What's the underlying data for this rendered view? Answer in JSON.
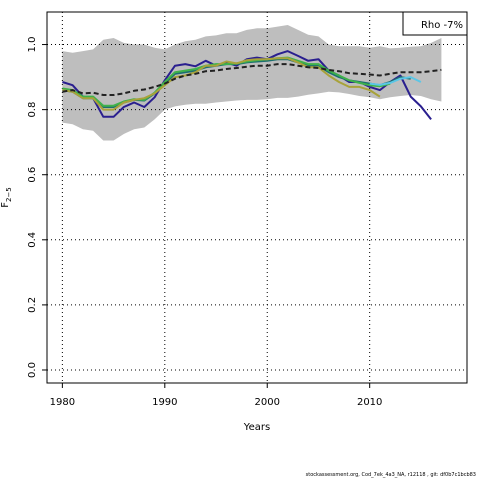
{
  "chart_data": {
    "type": "line",
    "xlabel": "Years",
    "ylabel": "F",
    "ylabel_sub": "2−5",
    "xlim": [
      1978.5,
      2019.5
    ],
    "ylim": [
      -0.04,
      1.1
    ],
    "x_ticks": [
      1980,
      1990,
      2000,
      2010
    ],
    "y_ticks": [
      0.0,
      0.2,
      0.4,
      0.6,
      0.8,
      1.0
    ],
    "x_tick_labels": [
      "1980",
      "1990",
      "2000",
      "2010"
    ],
    "y_tick_labels": [
      "0.0",
      "0.2",
      "0.4",
      "0.6",
      "0.8",
      "1.0"
    ],
    "grid": true,
    "legend": {
      "placement": "top-right",
      "text": "Rho -7%"
    },
    "band": {
      "color": "#bebebe",
      "x": [
        1980,
        1981,
        1982,
        1983,
        1984,
        1985,
        1986,
        1987,
        1988,
        1989,
        1990,
        1991,
        1992,
        1993,
        1994,
        1995,
        1996,
        1997,
        1998,
        1999,
        2000,
        2001,
        2002,
        2003,
        2004,
        2005,
        2006,
        2007,
        2008,
        2009,
        2010,
        2011,
        2012,
        2013,
        2014,
        2015,
        2016,
        2017
      ],
      "lower": [
        0.76,
        0.755,
        0.74,
        0.735,
        0.705,
        0.705,
        0.725,
        0.74,
        0.745,
        0.77,
        0.8,
        0.81,
        0.815,
        0.818,
        0.818,
        0.822,
        0.825,
        0.828,
        0.83,
        0.83,
        0.832,
        0.836,
        0.836,
        0.84,
        0.846,
        0.85,
        0.855,
        0.853,
        0.848,
        0.842,
        0.838,
        0.832,
        0.838,
        0.842,
        0.845,
        0.842,
        0.832,
        0.825
      ],
      "upper": [
        0.98,
        0.975,
        0.98,
        0.985,
        1.015,
        1.02,
        1.005,
        1.0,
        1.0,
        0.99,
        0.985,
        1.0,
        1.01,
        1.015,
        1.025,
        1.028,
        1.035,
        1.035,
        1.045,
        1.05,
        1.05,
        1.055,
        1.06,
        1.045,
        1.03,
        1.025,
        1.0,
        0.995,
        0.995,
        0.995,
        0.99,
        0.995,
        0.988,
        0.99,
        0.993,
        0.995,
        1.005,
        1.02
      ]
    },
    "series": [
      {
        "color": "#2a1f8f",
        "width": 2,
        "dash": "",
        "x": [
          1980,
          1981,
          1982,
          1983,
          1984,
          1985,
          1986,
          1987,
          1988,
          1989,
          1990,
          1991,
          1992,
          1993,
          1994,
          1995,
          1996,
          1997,
          1998,
          1999,
          2000,
          2001,
          2002,
          2003,
          2004,
          2005,
          2006,
          2007,
          2008,
          2009,
          2010,
          2011,
          2012,
          2013,
          2014,
          2015,
          2016
        ],
        "values": [
          0.885,
          0.875,
          0.84,
          0.835,
          0.778,
          0.778,
          0.808,
          0.822,
          0.808,
          0.838,
          0.89,
          0.935,
          0.94,
          0.933,
          0.95,
          0.935,
          0.945,
          0.935,
          0.955,
          0.96,
          0.955,
          0.97,
          0.98,
          0.965,
          0.95,
          0.955,
          0.92,
          0.905,
          0.885,
          0.885,
          0.87,
          0.86,
          0.885,
          0.905,
          0.84,
          0.81,
          0.77
        ]
      },
      {
        "color": "#1d6f6f",
        "width": 2,
        "dash": "",
        "x": [
          1980,
          1981,
          1982,
          1983,
          1984,
          1985,
          1986,
          1987,
          1988,
          1989,
          1990,
          1991,
          1992,
          1993,
          1994,
          1995,
          1996,
          1997,
          1998,
          1999,
          2000,
          2001,
          2002,
          2003,
          2004,
          2005,
          2006,
          2007,
          2008,
          2009,
          2010,
          2011,
          2012,
          2013,
          2014
        ],
        "values": [
          0.86,
          0.855,
          0.835,
          0.835,
          0.808,
          0.808,
          0.822,
          0.83,
          0.828,
          0.85,
          0.88,
          0.91,
          0.915,
          0.92,
          0.93,
          0.935,
          0.94,
          0.94,
          0.945,
          0.948,
          0.95,
          0.955,
          0.955,
          0.945,
          0.935,
          0.935,
          0.915,
          0.9,
          0.89,
          0.885,
          0.88,
          0.875,
          0.885,
          0.9,
          0.895
        ]
      },
      {
        "color": "#3fb24a",
        "width": 2,
        "dash": "",
        "x": [
          1980,
          1981,
          1982,
          1983,
          1984,
          1985,
          1986,
          1987,
          1988,
          1989,
          1990,
          1991,
          1992,
          1993,
          1994,
          1995,
          1996,
          1997,
          1998,
          1999,
          2000,
          2001,
          2002,
          2003,
          2004,
          2005,
          2006,
          2007,
          2008,
          2009,
          2010,
          2011,
          2012
        ],
        "values": [
          0.865,
          0.86,
          0.84,
          0.84,
          0.812,
          0.812,
          0.825,
          0.832,
          0.83,
          0.852,
          0.885,
          0.915,
          0.92,
          0.925,
          0.935,
          0.94,
          0.94,
          0.942,
          0.948,
          0.952,
          0.955,
          0.958,
          0.96,
          0.95,
          0.94,
          0.94,
          0.92,
          0.905,
          0.89,
          0.882,
          0.875,
          0.872,
          0.88
        ]
      },
      {
        "color": "#a8a23a",
        "width": 2,
        "dash": "",
        "x": [
          1980,
          1981,
          1982,
          1983,
          1984,
          1985,
          1986,
          1987,
          1988,
          1989,
          1990,
          1991,
          1992,
          1993,
          1994,
          1995,
          1996,
          1997,
          1998,
          1999,
          2000,
          2001,
          2002,
          2003,
          2004,
          2005,
          2006,
          2007,
          2008,
          2009,
          2010,
          2011
        ],
        "values": [
          0.86,
          0.855,
          0.835,
          0.835,
          0.8,
          0.8,
          0.822,
          0.83,
          0.835,
          0.85,
          0.875,
          0.9,
          0.905,
          0.915,
          0.935,
          0.935,
          0.948,
          0.942,
          0.952,
          0.955,
          0.955,
          0.958,
          0.958,
          0.945,
          0.93,
          0.93,
          0.905,
          0.885,
          0.87,
          0.87,
          0.86,
          0.84
        ]
      },
      {
        "color": "#5bc6e6",
        "width": 2,
        "dash": "",
        "x": [
          2010,
          2011,
          2012,
          2013,
          2014,
          2015
        ],
        "values": [
          0.88,
          0.876,
          0.882,
          0.895,
          0.9,
          0.885
        ]
      },
      {
        "color": "#222222",
        "width": 2,
        "dash": "5,3",
        "x": [
          1980,
          1981,
          1982,
          1983,
          1984,
          1985,
          1986,
          1987,
          1988,
          1989,
          1990,
          1991,
          1992,
          1993,
          1994,
          1995,
          1996,
          1997,
          1998,
          1999,
          2000,
          2001,
          2002,
          2003,
          2004,
          2005,
          2006,
          2007,
          2008,
          2009,
          2010,
          2011,
          2012,
          2013,
          2014,
          2015,
          2016,
          2017
        ],
        "values": [
          0.855,
          0.86,
          0.85,
          0.852,
          0.845,
          0.845,
          0.85,
          0.858,
          0.862,
          0.87,
          0.88,
          0.895,
          0.905,
          0.91,
          0.918,
          0.92,
          0.925,
          0.928,
          0.932,
          0.935,
          0.935,
          0.94,
          0.94,
          0.935,
          0.93,
          0.928,
          0.922,
          0.918,
          0.912,
          0.91,
          0.908,
          0.905,
          0.91,
          0.915,
          0.915,
          0.915,
          0.918,
          0.922
        ]
      }
    ]
  },
  "footer": "stockassessment.org, Cod_7ek_4a3_NA, r12118 , git: df0b7c1bcb83"
}
